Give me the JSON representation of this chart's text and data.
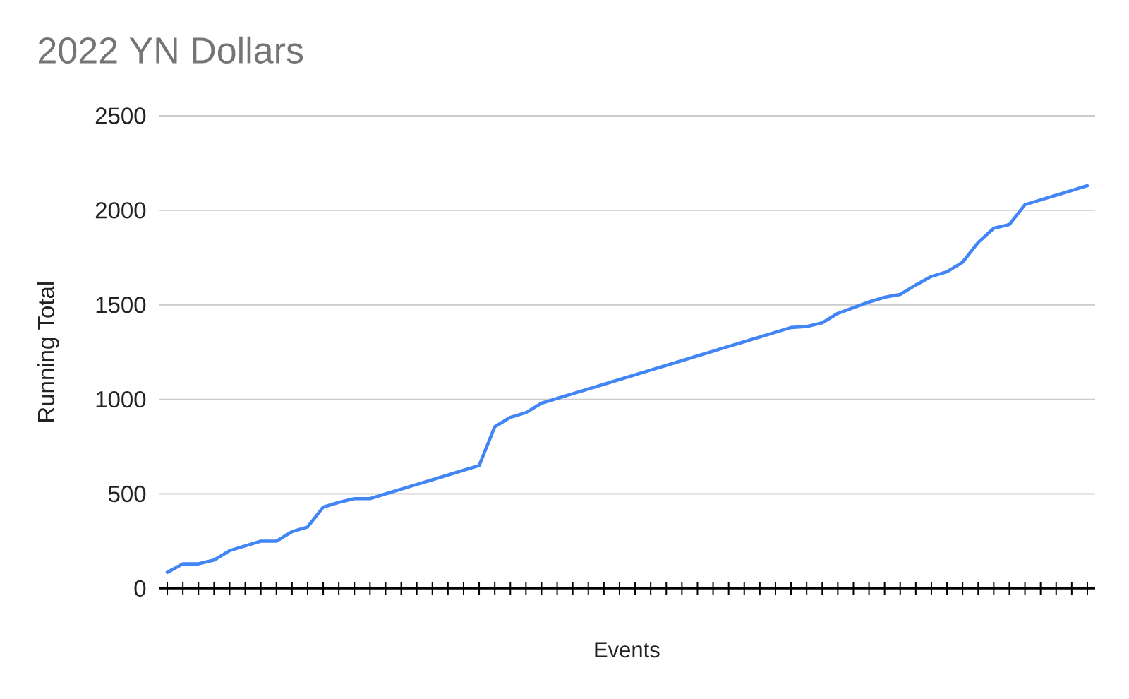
{
  "chart_data": {
    "type": "line",
    "title": "2022 YN Dollars",
    "xlabel": "Events",
    "ylabel": "Running Total",
    "categories": [
      null,
      null,
      null,
      null,
      null,
      null,
      null,
      null,
      null,
      null,
      null,
      null,
      null,
      null,
      null,
      null,
      null,
      null,
      null,
      null,
      null,
      null,
      null,
      null,
      null,
      null,
      null,
      null,
      null,
      null,
      null,
      null,
      null,
      null,
      null,
      null,
      null,
      null,
      null,
      null,
      null,
      null,
      null,
      null,
      null,
      null,
      null,
      null,
      null,
      null,
      null,
      null,
      null,
      null,
      null,
      null,
      null,
      null,
      null,
      null
    ],
    "values": [
      85,
      130,
      130,
      150,
      200,
      225,
      250,
      250,
      300,
      325,
      430,
      455,
      475,
      475,
      500,
      525,
      550,
      575,
      600,
      625,
      650,
      855,
      905,
      930,
      980,
      1005,
      1030,
      1055,
      1080,
      1105,
      1130,
      1155,
      1180,
      1205,
      1230,
      1255,
      1280,
      1305,
      1330,
      1355,
      1380,
      1385,
      1405,
      1455,
      1485,
      1515,
      1540,
      1555,
      1605,
      1650,
      1675,
      1725,
      1830,
      1905,
      1925,
      2030,
      2055,
      2080,
      2105,
      2130
    ],
    "color": "#4285f4",
    "ylim": [
      0,
      2500
    ],
    "yticks": [
      0,
      500,
      1000,
      1500,
      2000,
      2500
    ],
    "grid": "y",
    "tick_labels": "y"
  }
}
